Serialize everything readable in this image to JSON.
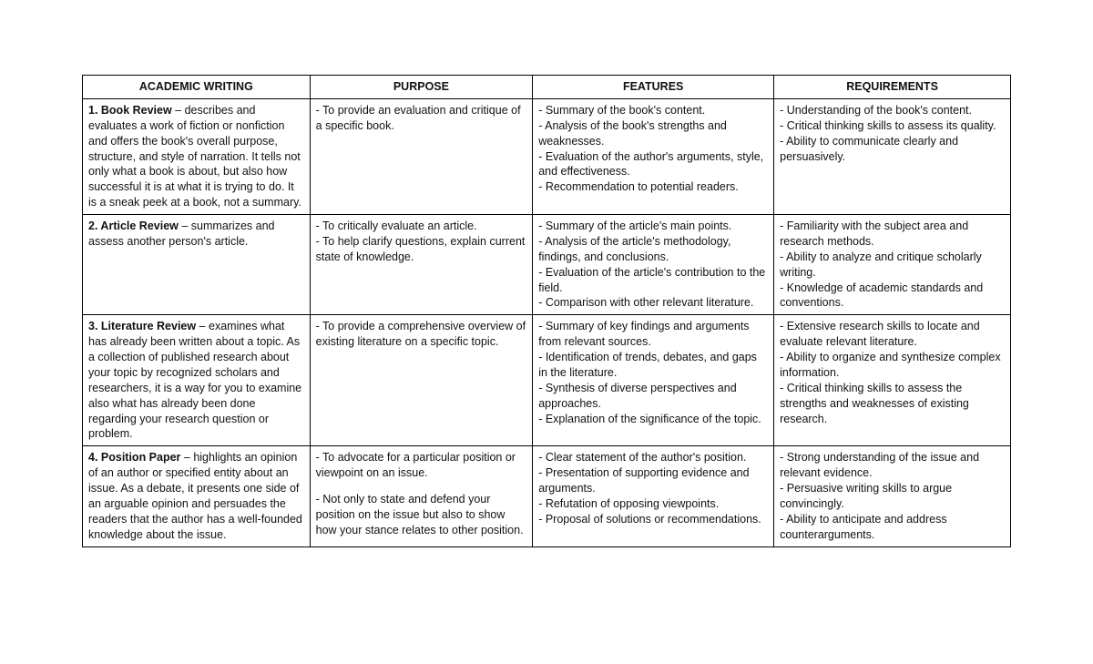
{
  "columns": [
    "ACADEMIC WRITING",
    "PURPOSE",
    "FEATURES",
    "REQUIREMENTS"
  ],
  "column_widths": [
    "24.5%",
    "24%",
    "26%",
    "25.5%"
  ],
  "rows": [
    {
      "title": "1. Book Review",
      "desc": " – describes and evaluates a work of fiction or nonfiction and offers the book's overall purpose, structure, and style of narration. It tells not only what a book is about, but also how successful it is at what it is trying to do. It is a sneak peek at a book, not a summary.",
      "purpose": [
        "- To provide an evaluation and critique of a specific book."
      ],
      "features": [
        "- Summary of the book's content.",
        "- Analysis of the book's strengths and weaknesses.",
        "- Evaluation of the author's arguments, style, and effectiveness.",
        "- Recommendation to potential readers."
      ],
      "requirements": [
        "- Understanding of the book's content.",
        "- Critical thinking skills to assess its quality.",
        "- Ability to communicate clearly and persuasively."
      ]
    },
    {
      "title": "2. Article Review",
      "desc": " – summarizes and assess another person's article.",
      "purpose": [
        "- To critically evaluate an article.",
        "- To help clarify questions, explain current state of knowledge."
      ],
      "features": [
        "- Summary of the article's main points.",
        "- Analysis of the article's methodology, findings, and conclusions.",
        "- Evaluation of the article's contribution to the field.",
        "- Comparison with other relevant literature."
      ],
      "requirements": [
        "- Familiarity with the subject area and research methods.",
        "- Ability to analyze and critique scholarly writing.",
        "- Knowledge of academic standards and conventions."
      ]
    },
    {
      "title": "3. Literature Review",
      "desc": " – examines what has already been written about a topic. As a collection of published research about your topic by recognized scholars and researchers, it is a way for you to examine also what has already been done regarding your research question or problem.",
      "purpose": [
        "- To provide a comprehensive overview of existing literature on a specific topic."
      ],
      "features": [
        "- Summary of key findings and arguments from relevant sources.",
        "- Identification of trends, debates, and gaps in the literature.",
        "- Synthesis of diverse perspectives and approaches.",
        "- Explanation of the significance of the topic."
      ],
      "requirements": [
        "- Extensive research skills to locate and evaluate relevant literature.",
        "- Ability to organize and synthesize complex information.",
        "- Critical thinking skills to assess the strengths and weaknesses of existing research."
      ]
    },
    {
      "title": "4. Position Paper",
      "desc": " – highlights an opinion of an author or specified entity about an issue. As a debate, it presents one side of an arguable opinion and persuades the readers that the author has a well-founded knowledge about the issue.",
      "purpose": [
        "- To advocate for a particular position or viewpoint on an issue.",
        "",
        "- Not only to state and defend your position on the issue but also to show how your stance relates to other position."
      ],
      "features": [
        "- Clear statement of the author's position.",
        "- Presentation of supporting evidence and arguments.",
        "- Refutation of opposing viewpoints.",
        "- Proposal of solutions or recommendations."
      ],
      "requirements": [
        "- Strong understanding of the issue and relevant evidence.",
        "- Persuasive writing skills to argue convincingly.",
        "- Ability to anticipate and address counterarguments."
      ]
    }
  ]
}
